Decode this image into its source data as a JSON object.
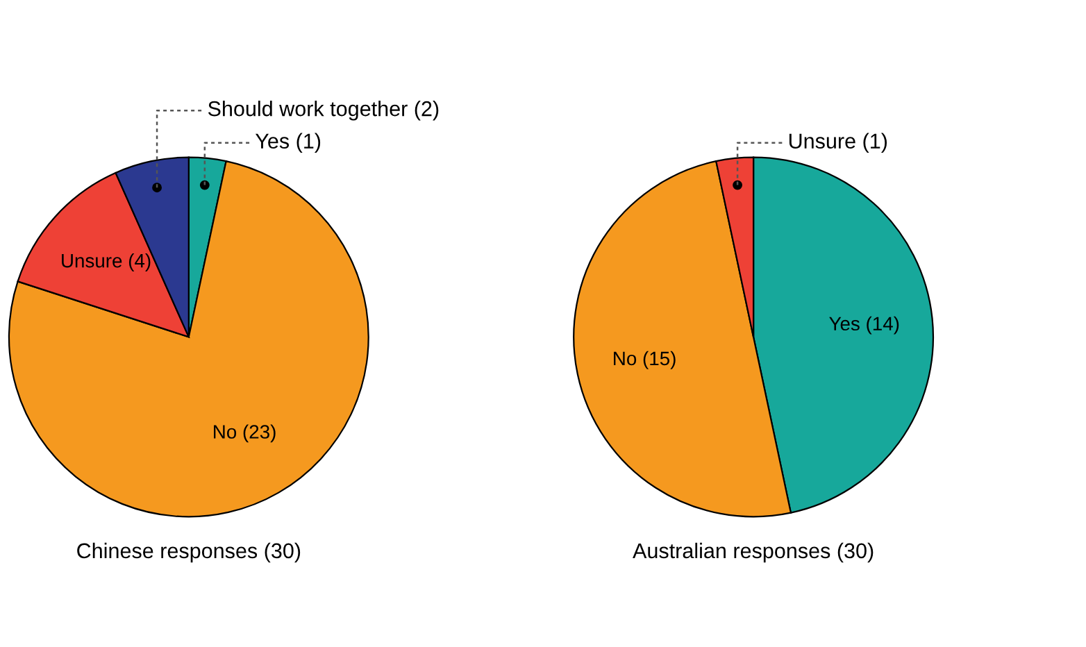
{
  "chart_data": [
    {
      "type": "pie",
      "title": "Chinese responses (30)",
      "categories": [
        "Yes (1)",
        "No (23)",
        "Unsure (4)",
        "Should work together (2)"
      ],
      "values": [
        1,
        23,
        4,
        2
      ],
      "colors": [
        "#17a89b",
        "#f5991f",
        "#ee4136",
        "#2b3990"
      ]
    },
    {
      "type": "pie",
      "title": "Australian responses (30)",
      "categories": [
        "Yes (14)",
        "No (15)",
        "Unsure (1)"
      ],
      "values": [
        14,
        15,
        1
      ],
      "colors": [
        "#17a89b",
        "#f5991f",
        "#ee4136"
      ]
    }
  ]
}
